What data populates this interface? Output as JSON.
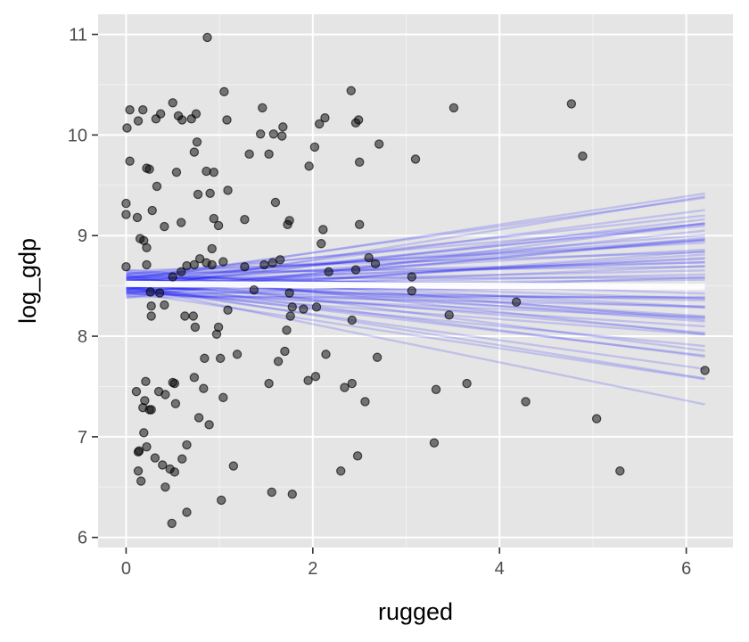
{
  "chart_data": {
    "type": "scatter",
    "title": "",
    "xlabel": "rugged",
    "ylabel": "log_gdp",
    "xlim": [
      -0.3,
      6.5
    ],
    "ylim": [
      5.9,
      11.2
    ],
    "x_ticks": [
      0,
      2,
      4,
      6
    ],
    "x_tick_labels": [
      "0",
      "2",
      "4",
      "6"
    ],
    "y_ticks": [
      6,
      7,
      8,
      9,
      10,
      11
    ],
    "y_tick_labels": [
      "6",
      "7",
      "8",
      "9",
      "10",
      "11"
    ],
    "grid": true,
    "legend": "none",
    "colors": {
      "panel": "#e5e5e5",
      "grid_major": "#ffffff",
      "points": "#000000",
      "fit_lines": "#0000ff",
      "mean_line": "#ffffff"
    },
    "points": [
      {
        "x": 0.87,
        "y": 10.97
      },
      {
        "x": 0.04,
        "y": 10.25
      },
      {
        "x": 0.01,
        "y": 10.07
      },
      {
        "x": 0.13,
        "y": 10.14
      },
      {
        "x": 0.18,
        "y": 10.25
      },
      {
        "x": 0.32,
        "y": 10.16
      },
      {
        "x": 0.37,
        "y": 10.21
      },
      {
        "x": 0.5,
        "y": 10.32
      },
      {
        "x": 0.56,
        "y": 10.19
      },
      {
        "x": 0.6,
        "y": 10.15
      },
      {
        "x": 0.7,
        "y": 10.16
      },
      {
        "x": 0.75,
        "y": 10.21
      },
      {
        "x": 0.76,
        "y": 9.93
      },
      {
        "x": 0.73,
        "y": 9.83
      },
      {
        "x": 1.05,
        "y": 10.43
      },
      {
        "x": 1.08,
        "y": 10.15
      },
      {
        "x": 1.46,
        "y": 10.27
      },
      {
        "x": 1.44,
        "y": 10.01
      },
      {
        "x": 1.58,
        "y": 10.01
      },
      {
        "x": 1.68,
        "y": 10.08
      },
      {
        "x": 1.67,
        "y": 9.99
      },
      {
        "x": 2.07,
        "y": 10.11
      },
      {
        "x": 2.13,
        "y": 10.17
      },
      {
        "x": 2.41,
        "y": 10.44
      },
      {
        "x": 2.49,
        "y": 10.15
      },
      {
        "x": 2.46,
        "y": 10.12
      },
      {
        "x": 2.02,
        "y": 9.88
      },
      {
        "x": 1.96,
        "y": 9.69
      },
      {
        "x": 1.32,
        "y": 9.81
      },
      {
        "x": 1.53,
        "y": 9.81
      },
      {
        "x": 2.5,
        "y": 9.73
      },
      {
        "x": 2.71,
        "y": 9.91
      },
      {
        "x": 3.1,
        "y": 9.76
      },
      {
        "x": 3.51,
        "y": 10.27
      },
      {
        "x": 4.77,
        "y": 10.31
      },
      {
        "x": 4.89,
        "y": 9.79
      },
      {
        "x": 0.04,
        "y": 9.74
      },
      {
        "x": 0.22,
        "y": 9.67
      },
      {
        "x": 0.25,
        "y": 9.66
      },
      {
        "x": 0.54,
        "y": 9.63
      },
      {
        "x": 0.86,
        "y": 9.64
      },
      {
        "x": 0.94,
        "y": 9.63
      },
      {
        "x": 0.33,
        "y": 9.49
      },
      {
        "x": 0.77,
        "y": 9.41
      },
      {
        "x": 0.9,
        "y": 9.42
      },
      {
        "x": 1.09,
        "y": 9.45
      },
      {
        "x": 1.6,
        "y": 9.33
      },
      {
        "x": 0.0,
        "y": 9.32
      },
      {
        "x": 0.0,
        "y": 9.21
      },
      {
        "x": 0.12,
        "y": 9.18
      },
      {
        "x": 0.28,
        "y": 9.25
      },
      {
        "x": 0.41,
        "y": 9.09
      },
      {
        "x": 0.59,
        "y": 9.13
      },
      {
        "x": 0.94,
        "y": 9.17
      },
      {
        "x": 0.99,
        "y": 9.1
      },
      {
        "x": 1.27,
        "y": 9.16
      },
      {
        "x": 1.75,
        "y": 9.15
      },
      {
        "x": 1.73,
        "y": 9.11
      },
      {
        "x": 2.11,
        "y": 9.06
      },
      {
        "x": 2.5,
        "y": 9.11
      },
      {
        "x": 0.15,
        "y": 8.97
      },
      {
        "x": 0.19,
        "y": 8.95
      },
      {
        "x": 0.22,
        "y": 8.88
      },
      {
        "x": 0.92,
        "y": 8.87
      },
      {
        "x": 2.09,
        "y": 8.92
      },
      {
        "x": 0.0,
        "y": 8.69
      },
      {
        "x": 0.22,
        "y": 8.71
      },
      {
        "x": 0.59,
        "y": 8.64
      },
      {
        "x": 0.65,
        "y": 8.7
      },
      {
        "x": 0.73,
        "y": 8.71
      },
      {
        "x": 0.79,
        "y": 8.77
      },
      {
        "x": 0.86,
        "y": 8.73
      },
      {
        "x": 0.92,
        "y": 8.71
      },
      {
        "x": 1.04,
        "y": 8.74
      },
      {
        "x": 1.27,
        "y": 8.69
      },
      {
        "x": 1.48,
        "y": 8.71
      },
      {
        "x": 1.57,
        "y": 8.73
      },
      {
        "x": 1.65,
        "y": 8.76
      },
      {
        "x": 2.17,
        "y": 8.64
      },
      {
        "x": 2.46,
        "y": 8.66
      },
      {
        "x": 2.6,
        "y": 8.78
      },
      {
        "x": 2.67,
        "y": 8.72
      },
      {
        "x": 3.06,
        "y": 8.59
      },
      {
        "x": 0.26,
        "y": 8.44
      },
      {
        "x": 0.36,
        "y": 8.43
      },
      {
        "x": 0.5,
        "y": 8.59
      },
      {
        "x": 0.27,
        "y": 8.3
      },
      {
        "x": 0.27,
        "y": 8.2
      },
      {
        "x": 0.41,
        "y": 8.31
      },
      {
        "x": 0.63,
        "y": 8.2
      },
      {
        "x": 0.72,
        "y": 8.2
      },
      {
        "x": 0.74,
        "y": 8.09
      },
      {
        "x": 1.09,
        "y": 8.26
      },
      {
        "x": 0.99,
        "y": 8.09
      },
      {
        "x": 0.97,
        "y": 8.02
      },
      {
        "x": 1.37,
        "y": 8.46
      },
      {
        "x": 1.75,
        "y": 8.43
      },
      {
        "x": 1.78,
        "y": 8.29
      },
      {
        "x": 1.76,
        "y": 8.2
      },
      {
        "x": 1.9,
        "y": 8.27
      },
      {
        "x": 2.04,
        "y": 8.29
      },
      {
        "x": 1.72,
        "y": 8.06
      },
      {
        "x": 2.42,
        "y": 8.16
      },
      {
        "x": 3.06,
        "y": 8.45
      },
      {
        "x": 3.46,
        "y": 8.21
      },
      {
        "x": 4.18,
        "y": 8.34
      },
      {
        "x": 0.84,
        "y": 7.78
      },
      {
        "x": 1.01,
        "y": 7.78
      },
      {
        "x": 1.19,
        "y": 7.82
      },
      {
        "x": 1.63,
        "y": 7.75
      },
      {
        "x": 1.7,
        "y": 7.85
      },
      {
        "x": 2.14,
        "y": 7.82
      },
      {
        "x": 2.03,
        "y": 7.6
      },
      {
        "x": 1.95,
        "y": 7.56
      },
      {
        "x": 1.53,
        "y": 7.53
      },
      {
        "x": 2.34,
        "y": 7.49
      },
      {
        "x": 2.42,
        "y": 7.53
      },
      {
        "x": 2.56,
        "y": 7.35
      },
      {
        "x": 2.69,
        "y": 7.79
      },
      {
        "x": 3.32,
        "y": 7.47
      },
      {
        "x": 3.65,
        "y": 7.53
      },
      {
        "x": 4.28,
        "y": 7.35
      },
      {
        "x": 6.2,
        "y": 7.66
      },
      {
        "x": 5.04,
        "y": 7.18
      },
      {
        "x": 5.29,
        "y": 6.66
      },
      {
        "x": 3.3,
        "y": 6.94
      },
      {
        "x": 2.48,
        "y": 6.81
      },
      {
        "x": 2.3,
        "y": 6.66
      },
      {
        "x": 0.21,
        "y": 7.55
      },
      {
        "x": 0.11,
        "y": 7.45
      },
      {
        "x": 0.2,
        "y": 7.36
      },
      {
        "x": 0.18,
        "y": 7.29
      },
      {
        "x": 0.25,
        "y": 7.27
      },
      {
        "x": 0.27,
        "y": 7.27
      },
      {
        "x": 0.35,
        "y": 7.45
      },
      {
        "x": 0.42,
        "y": 7.42
      },
      {
        "x": 0.5,
        "y": 7.54
      },
      {
        "x": 0.52,
        "y": 7.53
      },
      {
        "x": 0.53,
        "y": 7.33
      },
      {
        "x": 0.73,
        "y": 7.59
      },
      {
        "x": 0.83,
        "y": 7.48
      },
      {
        "x": 1.04,
        "y": 7.39
      },
      {
        "x": 0.78,
        "y": 7.19
      },
      {
        "x": 0.89,
        "y": 7.12
      },
      {
        "x": 0.19,
        "y": 7.04
      },
      {
        "x": 0.22,
        "y": 6.9
      },
      {
        "x": 0.14,
        "y": 6.86
      },
      {
        "x": 0.13,
        "y": 6.85
      },
      {
        "x": 0.31,
        "y": 6.79
      },
      {
        "x": 0.65,
        "y": 6.92
      },
      {
        "x": 0.6,
        "y": 6.78
      },
      {
        "x": 0.13,
        "y": 6.66
      },
      {
        "x": 0.16,
        "y": 6.56
      },
      {
        "x": 0.39,
        "y": 6.72
      },
      {
        "x": 0.47,
        "y": 6.68
      },
      {
        "x": 0.52,
        "y": 6.65
      },
      {
        "x": 0.42,
        "y": 6.5
      },
      {
        "x": 1.15,
        "y": 6.71
      },
      {
        "x": 0.65,
        "y": 6.25
      },
      {
        "x": 0.49,
        "y": 6.14
      },
      {
        "x": 1.02,
        "y": 6.37
      },
      {
        "x": 1.56,
        "y": 6.45
      },
      {
        "x": 1.78,
        "y": 6.43
      }
    ],
    "fit_lines": {
      "x_range": [
        0.0,
        6.2
      ],
      "lines": [
        {
          "intercept": 8.55,
          "slope": 0.14
        },
        {
          "intercept": 8.5,
          "slope": -0.19
        },
        {
          "intercept": 8.57,
          "slope": 0.13
        },
        {
          "intercept": 8.44,
          "slope": -0.14
        },
        {
          "intercept": 8.48,
          "slope": 0.11
        },
        {
          "intercept": 8.6,
          "slope": -0.12
        },
        {
          "intercept": 8.42,
          "slope": 0.09
        },
        {
          "intercept": 8.62,
          "slope": 0.05
        },
        {
          "intercept": 8.46,
          "slope": -0.09
        },
        {
          "intercept": 8.58,
          "slope": -0.07
        },
        {
          "intercept": 8.38,
          "slope": 0.12
        },
        {
          "intercept": 8.66,
          "slope": -0.08
        },
        {
          "intercept": 8.52,
          "slope": 0.07
        },
        {
          "intercept": 8.5,
          "slope": -0.05
        },
        {
          "intercept": 8.45,
          "slope": 0.04
        },
        {
          "intercept": 8.61,
          "slope": -0.03
        },
        {
          "intercept": 8.53,
          "slope": 0.02
        },
        {
          "intercept": 8.47,
          "slope": 0.0
        },
        {
          "intercept": 8.56,
          "slope": -0.01
        },
        {
          "intercept": 8.4,
          "slope": 0.03
        },
        {
          "intercept": 8.63,
          "slope": 0.01
        },
        {
          "intercept": 8.49,
          "slope": -0.11
        },
        {
          "intercept": 8.54,
          "slope": 0.09
        },
        {
          "intercept": 8.43,
          "slope": -0.04
        },
        {
          "intercept": 8.59,
          "slope": 0.06
        },
        {
          "intercept": 8.51,
          "slope": -0.15
        },
        {
          "intercept": 8.46,
          "slope": 0.15
        },
        {
          "intercept": 8.64,
          "slope": -0.1
        },
        {
          "intercept": 8.41,
          "slope": 0.07
        },
        {
          "intercept": 8.57,
          "slope": -0.06
        },
        {
          "intercept": 8.52,
          "slope": 0.04
        },
        {
          "intercept": 8.48,
          "slope": -0.02
        },
        {
          "intercept": 8.55,
          "slope": 0.03
        },
        {
          "intercept": 8.44,
          "slope": 0.06
        },
        {
          "intercept": 8.6,
          "slope": -0.05
        },
        {
          "intercept": 8.5,
          "slope": 0.1
        },
        {
          "intercept": 8.53,
          "slope": -0.08
        },
        {
          "intercept": 8.47,
          "slope": 0.05
        },
        {
          "intercept": 8.58,
          "slope": 0.0
        },
        {
          "intercept": 8.45,
          "slope": -0.07
        },
        {
          "intercept": 8.62,
          "slope": 0.08
        },
        {
          "intercept": 8.39,
          "slope": 0.0
        },
        {
          "intercept": 8.56,
          "slope": -0.03
        },
        {
          "intercept": 8.49,
          "slope": 0.02
        },
        {
          "intercept": 8.54,
          "slope": -0.12
        },
        {
          "intercept": 8.43,
          "slope": 0.1
        },
        {
          "intercept": 8.59,
          "slope": -0.02
        },
        {
          "intercept": 8.51,
          "slope": 0.12
        },
        {
          "intercept": 8.47,
          "slope": -0.06
        },
        {
          "intercept": 8.65,
          "slope": 0.03
        },
        {
          "intercept": 8.42,
          "slope": -0.02
        },
        {
          "intercept": 8.57,
          "slope": 0.07
        },
        {
          "intercept": 8.5,
          "slope": 0.01
        },
        {
          "intercept": 8.53,
          "slope": -0.04
        },
        {
          "intercept": 8.46,
          "slope": 0.08
        },
        {
          "intercept": 8.61,
          "slope": 0.02
        },
        {
          "intercept": 8.48,
          "slope": -0.13
        },
        {
          "intercept": 8.55,
          "slope": 0.05
        },
        {
          "intercept": 8.44,
          "slope": -0.01
        },
        {
          "intercept": 8.58,
          "slope": 0.1
        }
      ],
      "mean_line": {
        "intercept": 8.52,
        "slope": -0.005
      }
    }
  }
}
